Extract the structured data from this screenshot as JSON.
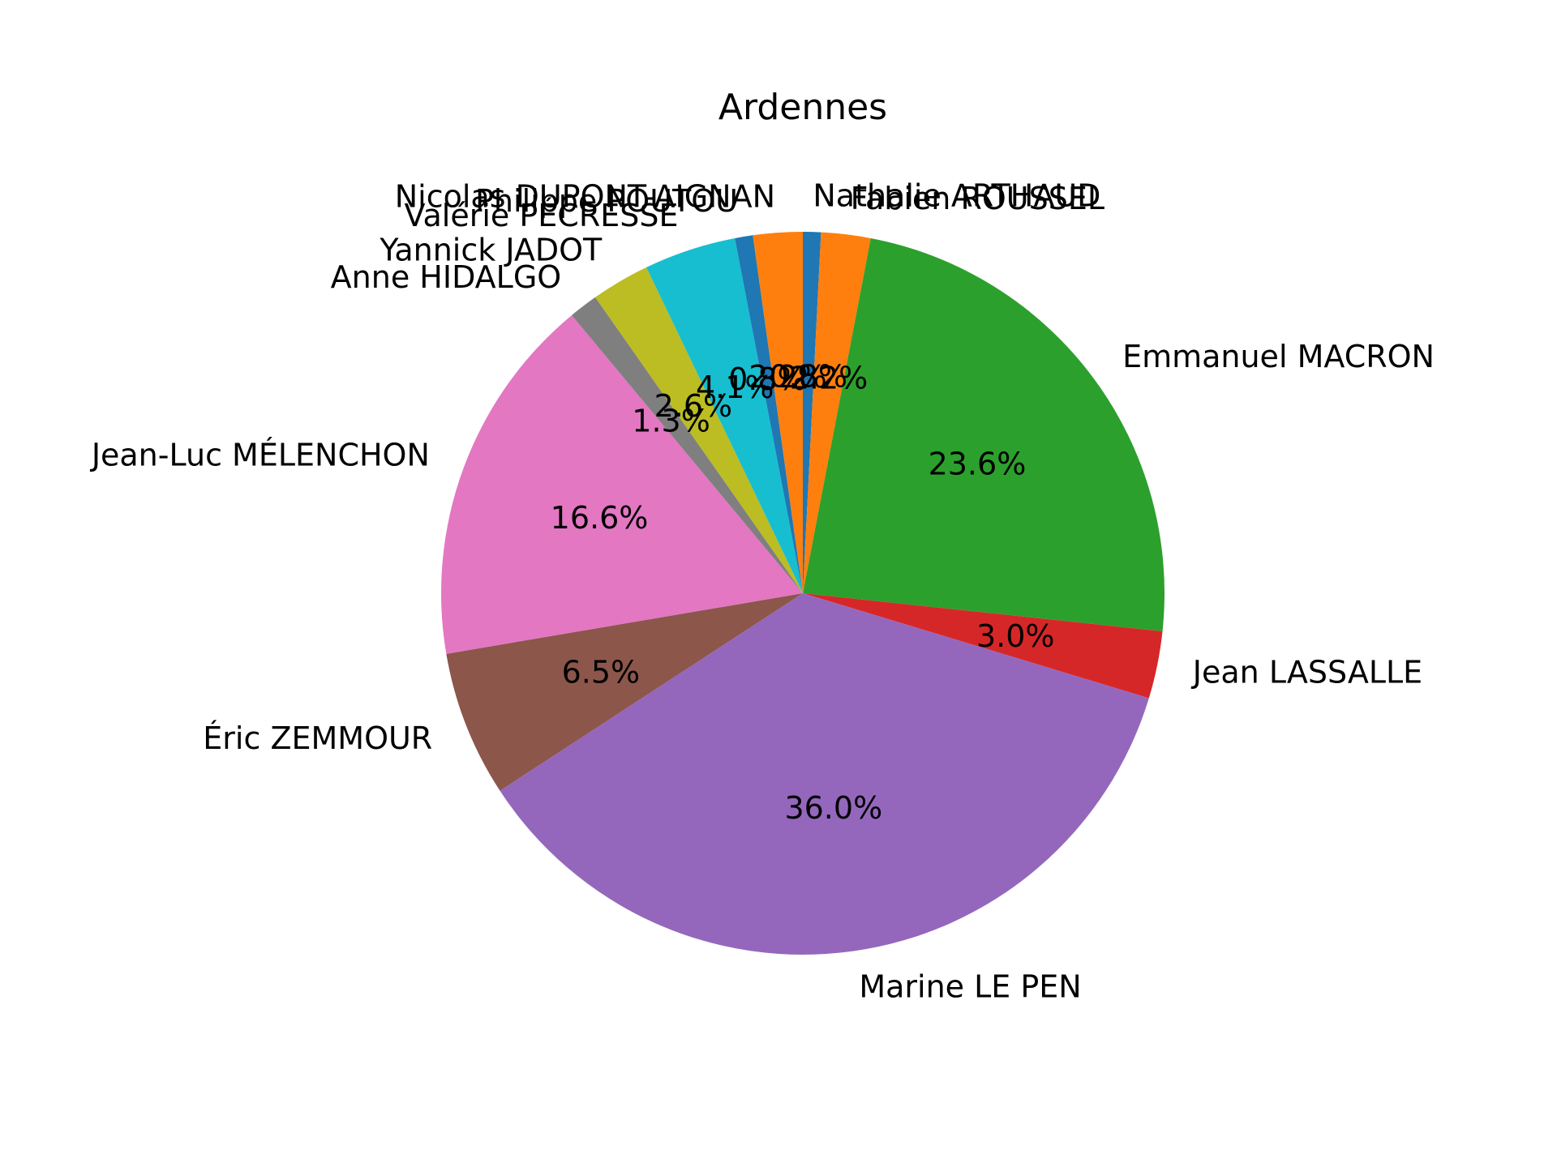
{
  "chart_data": {
    "type": "pie",
    "title": "Ardennes",
    "start_angle_deg": 90,
    "direction": "clockwise",
    "slices": [
      {
        "label": "Nathalie ARTHAUD",
        "value": 0.8,
        "pct_label": "0.8%",
        "color": "#1f77b4"
      },
      {
        "label": "Fabien ROUSSEL",
        "value": 2.2,
        "pct_label": "2.2%",
        "color": "#ff7f0e"
      },
      {
        "label": "Emmanuel MACRON",
        "value": 23.6,
        "pct_label": "23.6%",
        "color": "#2ca02c"
      },
      {
        "label": "Jean LASSALLE",
        "value": 3.0,
        "pct_label": "3.0%",
        "color": "#d62728"
      },
      {
        "label": "Marine LE PEN",
        "value": 36.0,
        "pct_label": "36.0%",
        "color": "#9467bd"
      },
      {
        "label": "Éric ZEMMOUR",
        "value": 6.5,
        "pct_label": "6.5%",
        "color": "#8c564b"
      },
      {
        "label": "Jean-Luc MÉLENCHON",
        "value": 16.6,
        "pct_label": "16.6%",
        "color": "#e377c2"
      },
      {
        "label": "Anne HIDALGO",
        "value": 1.3,
        "pct_label": "1.3%",
        "color": "#7f7f7f"
      },
      {
        "label": "Yannick JADOT",
        "value": 2.6,
        "pct_label": "2.6%",
        "color": "#bcbd22"
      },
      {
        "label": "Valérie PÉCRESSE",
        "value": 4.1,
        "pct_label": "4.1%",
        "color": "#17becf"
      },
      {
        "label": "Philippe POUTOU",
        "value": 0.8,
        "pct_label": "0.8%",
        "color": "#1f77b4"
      },
      {
        "label": "Nicolas DUPONT-AIGNAN",
        "value": 2.2,
        "pct_label": "2.2%",
        "color": "#ff7f0e"
      }
    ]
  }
}
